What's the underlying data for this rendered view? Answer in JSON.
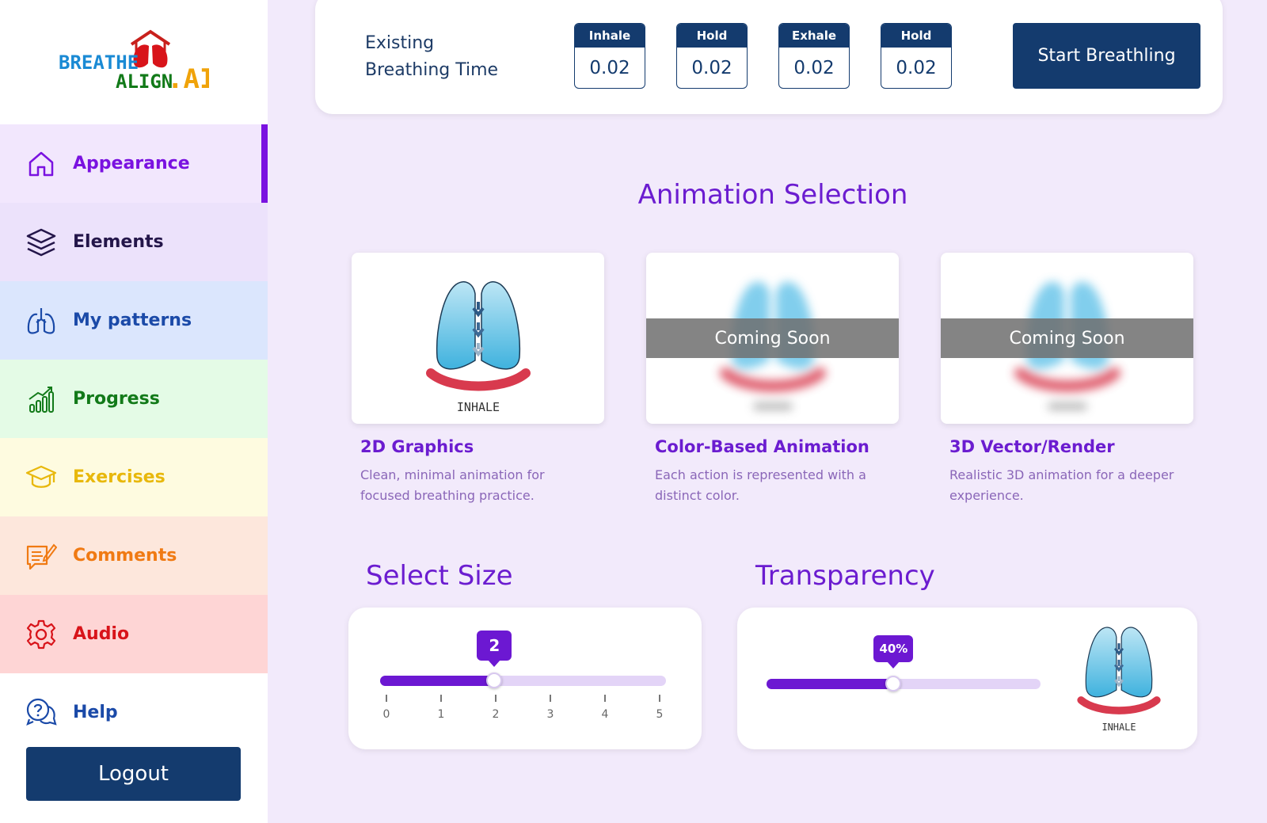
{
  "brand": {
    "line1": "BREATHE",
    "line2": "ALIGN",
    "suffix": ".AI"
  },
  "sidebar": {
    "items": [
      {
        "label": "Appearance",
        "icon": "home-icon",
        "bg": "#f2e7fd",
        "color": "#7a12e0",
        "active": true
      },
      {
        "label": "Elements",
        "icon": "layers-icon",
        "bg": "#ece2fb",
        "color": "#24164a"
      },
      {
        "label": "My patterns",
        "icon": "lungs-icon",
        "bg": "#dbe6fd",
        "color": "#1b4aa8"
      },
      {
        "label": "Progress",
        "icon": "chart-icon",
        "bg": "#e4fbe6",
        "color": "#127a19"
      },
      {
        "label": "Exercises",
        "icon": "graduation-cap-icon",
        "bg": "#fefbe0",
        "color": "#e8b80c"
      },
      {
        "label": "Comments",
        "icon": "comment-icon",
        "bg": "#fde7dc",
        "color": "#f07a13"
      },
      {
        "label": "Audio",
        "icon": "gear-icon",
        "bg": "#fed5d5",
        "color": "#d8141a"
      },
      {
        "label": "Help",
        "icon": "help-chat-icon",
        "bg": "#ffffff",
        "color": "#1b4aa8"
      }
    ],
    "logout": "Logout"
  },
  "topbar": {
    "existing_line1": "Existing",
    "existing_line2": "Breathing Time",
    "boxes": [
      {
        "label": "Inhale",
        "value": "0.02"
      },
      {
        "label": "Hold",
        "value": "0.02"
      },
      {
        "label": "Exhale",
        "value": "0.02"
      },
      {
        "label": "Hold",
        "value": "0.02"
      }
    ],
    "start": "Start Breathling"
  },
  "animation": {
    "title": "Animation Selection",
    "coming_soon": "Coming Soon",
    "lung_caption": "INHALE",
    "cards": [
      {
        "title": "2D Graphics",
        "desc": " Clean, minimal animation for focused breathing practice."
      },
      {
        "title": "Color-Based Animation",
        "desc": "Each action is represented with a distinct color."
      },
      {
        "title": "3D Vector/Render",
        "desc": "Realistic 3D animation for a deeper experience."
      }
    ]
  },
  "size": {
    "title": "Select Size",
    "value": 2,
    "min": 0,
    "max": 5,
    "ticks": [
      "0",
      "1",
      "2",
      "3",
      "4",
      "5"
    ],
    "bubble": "2"
  },
  "transparency": {
    "title": "Transparency",
    "percent": 40,
    "bubble": "40%",
    "preview_caption": "INHALE"
  },
  "colors": {
    "accent": "#6c18d2",
    "navy": "#143b6e"
  }
}
